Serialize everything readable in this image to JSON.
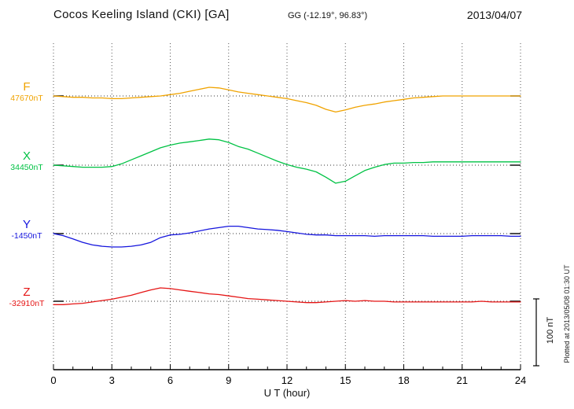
{
  "chart_data": {
    "type": "line",
    "title": "Cocos Keeling Island (CKI)  [GA]",
    "coordinates": "GG (-12.19°,  96.83°)",
    "date": "2013/04/07",
    "xlabel": "U T (hour)",
    "x_range": [
      0,
      24
    ],
    "x_ticks": [
      0,
      3,
      6,
      9,
      12,
      15,
      18,
      21,
      24
    ],
    "x_minor_tick_step": 1,
    "x_step_hours": 0.5,
    "grid": "dotted-vertical-at-3h",
    "scale_bar_nT": 100,
    "scale_label": "100 nT",
    "plotted_note": "Plotted at 2013/05/08 01:30 UT",
    "values_are": "deviation in nT from each component baseline",
    "series": [
      {
        "name": "F",
        "baseline_label": "47670nT",
        "baseline_nT": 47670,
        "color": "#f0a300",
        "values": [
          0,
          -1,
          -2,
          -2,
          -3,
          -3,
          -4,
          -4,
          -3,
          -2,
          -1,
          0,
          2,
          4,
          7,
          10,
          13,
          12,
          9,
          6,
          4,
          2,
          0,
          -2,
          -4,
          -7,
          -10,
          -14,
          -20,
          -24,
          -21,
          -17,
          -14,
          -12,
          -9,
          -7,
          -5,
          -3,
          -2,
          -1,
          0,
          0,
          0,
          0,
          0,
          0,
          0,
          0,
          0
        ]
      },
      {
        "name": "X",
        "baseline_label": "34450nT",
        "baseline_nT": 34450,
        "color": "#00c244",
        "values": [
          0,
          -1,
          -2,
          -3,
          -3,
          -3,
          -2,
          2,
          8,
          14,
          20,
          26,
          30,
          33,
          35,
          37,
          39,
          38,
          34,
          28,
          24,
          18,
          12,
          6,
          1,
          -3,
          -6,
          -10,
          -18,
          -27,
          -24,
          -16,
          -8,
          -3,
          1,
          3,
          3,
          4,
          4,
          5,
          5,
          5,
          5,
          5,
          5,
          5,
          5,
          5,
          5
        ]
      },
      {
        "name": "Y",
        "baseline_label": "-1450nT",
        "baseline_nT": -1450,
        "color": "#1515dd",
        "values": [
          0,
          -3,
          -8,
          -13,
          -17,
          -19,
          -20,
          -20,
          -19,
          -17,
          -13,
          -6,
          -2,
          -1,
          1,
          4,
          7,
          9,
          11,
          11,
          9,
          7,
          6,
          5,
          3,
          1,
          -1,
          -2,
          -2,
          -3,
          -3,
          -3,
          -3,
          -4,
          -3,
          -3,
          -3,
          -3,
          -3,
          -4,
          -4,
          -4,
          -4,
          -3,
          -3,
          -3,
          -3,
          -4,
          -4
        ]
      },
      {
        "name": "Z",
        "baseline_label": "-32910nT",
        "baseline_nT": -32910,
        "color": "#e51515",
        "values": [
          -5,
          -5,
          -4,
          -3,
          -1,
          1,
          3,
          6,
          9,
          13,
          17,
          20,
          19,
          17,
          15,
          13,
          11,
          10,
          8,
          6,
          4,
          3,
          2,
          1,
          0,
          -1,
          -2,
          -2,
          -1,
          0,
          1,
          0,
          1,
          0,
          0,
          -1,
          -1,
          -1,
          -1,
          -1,
          -1,
          -1,
          -1,
          -1,
          0,
          -1,
          -1,
          -1,
          -1
        ]
      }
    ]
  }
}
